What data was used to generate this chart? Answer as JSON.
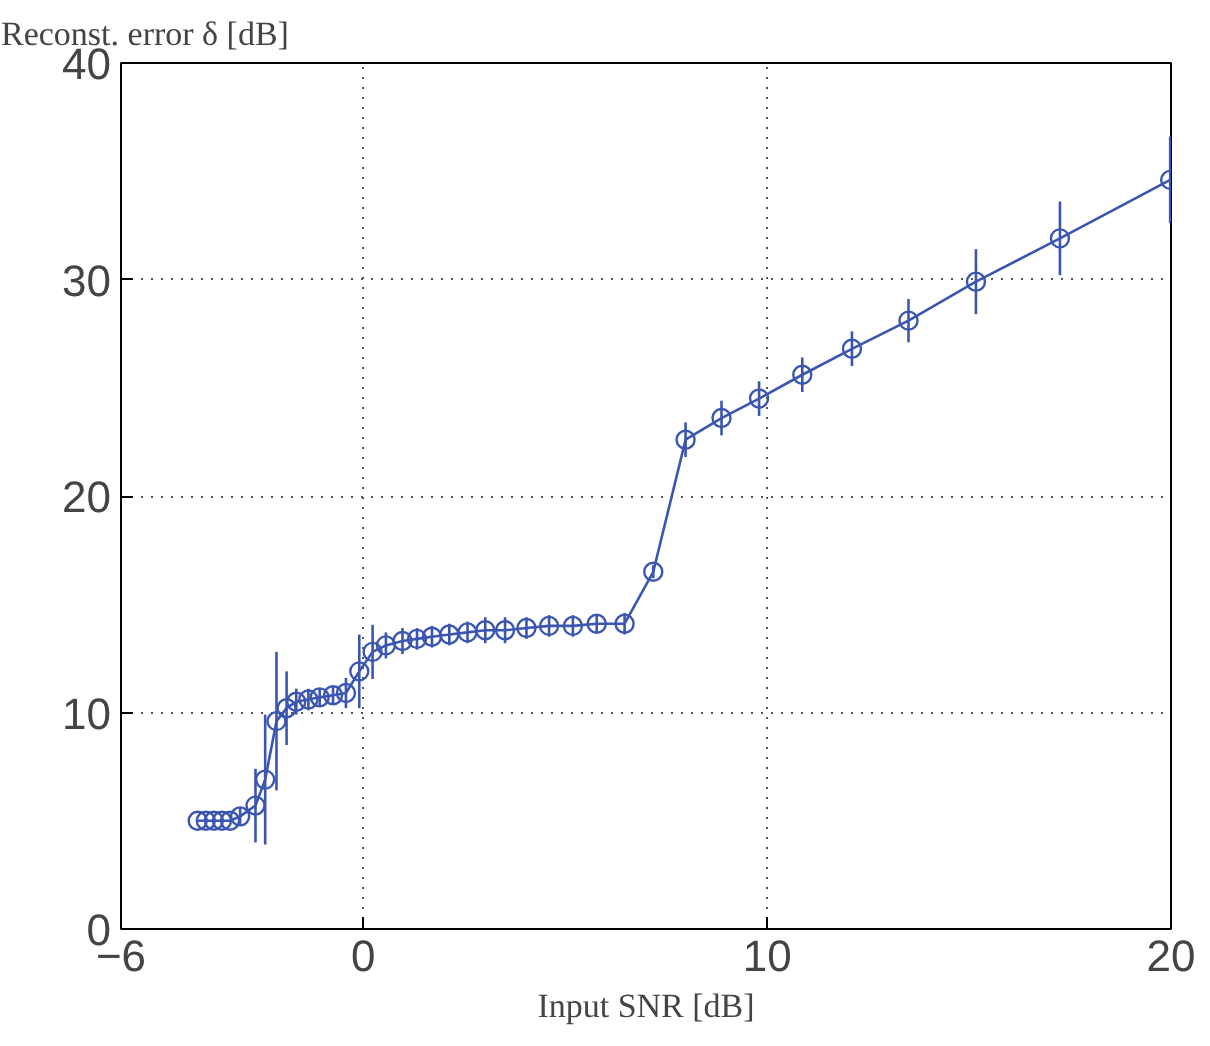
{
  "chart_data": {
    "type": "line",
    "ylabel": "Reconst. error δ [dB]",
    "xlabel": "Input SNR [dB]",
    "xlim": [
      -6,
      20
    ],
    "xticks": [
      {
        "value": -6,
        "label": "−6"
      },
      0,
      10,
      20
    ],
    "ylim": [
      0,
      40
    ],
    "yticks": [
      0,
      10,
      20,
      30,
      40
    ],
    "grid": true,
    "marker": "circle",
    "line_style": "solid",
    "series": [
      {
        "color": "#3a56b0",
        "x": [
          -4.1,
          -3.9,
          -3.7,
          -3.5,
          -3.3,
          -3.05,
          -2.67,
          -2.43,
          -2.15,
          -1.9,
          -1.66,
          -1.36,
          -1.08,
          -0.75,
          -0.43,
          -0.1,
          0.23,
          0.56,
          0.97,
          1.33,
          1.7,
          2.13,
          2.58,
          3.02,
          3.51,
          4.04,
          4.6,
          5.19,
          5.78,
          6.47,
          7.18,
          7.98,
          8.87,
          9.8,
          10.87,
          12.1,
          13.5,
          15.17,
          17.25,
          19.98
        ],
        "values": [
          5.0,
          5.0,
          5.0,
          5.0,
          5.0,
          5.2,
          5.7,
          6.9,
          9.6,
          10.2,
          10.5,
          10.6,
          10.7,
          10.8,
          10.9,
          11.9,
          12.8,
          13.1,
          13.3,
          13.4,
          13.5,
          13.6,
          13.7,
          13.8,
          13.8,
          13.9,
          14.0,
          14.0,
          14.1,
          14.1,
          16.5,
          22.6,
          23.6,
          24.5,
          25.6,
          26.8,
          28.1,
          29.9,
          31.9,
          34.6
        ],
        "errors": [
          null,
          null,
          null,
          null,
          null,
          0.4,
          1.7,
          3.0,
          3.2,
          1.7,
          0.6,
          0.5,
          0.4,
          0.4,
          0.7,
          1.7,
          1.25,
          0.6,
          0.6,
          0.5,
          0.5,
          0.5,
          0.5,
          0.6,
          0.6,
          0.5,
          0.5,
          0.5,
          0.4,
          0.5,
          0.3,
          0.8,
          0.8,
          0.8,
          0.8,
          0.8,
          1.0,
          1.5,
          1.7,
          2.0
        ]
      }
    ]
  }
}
